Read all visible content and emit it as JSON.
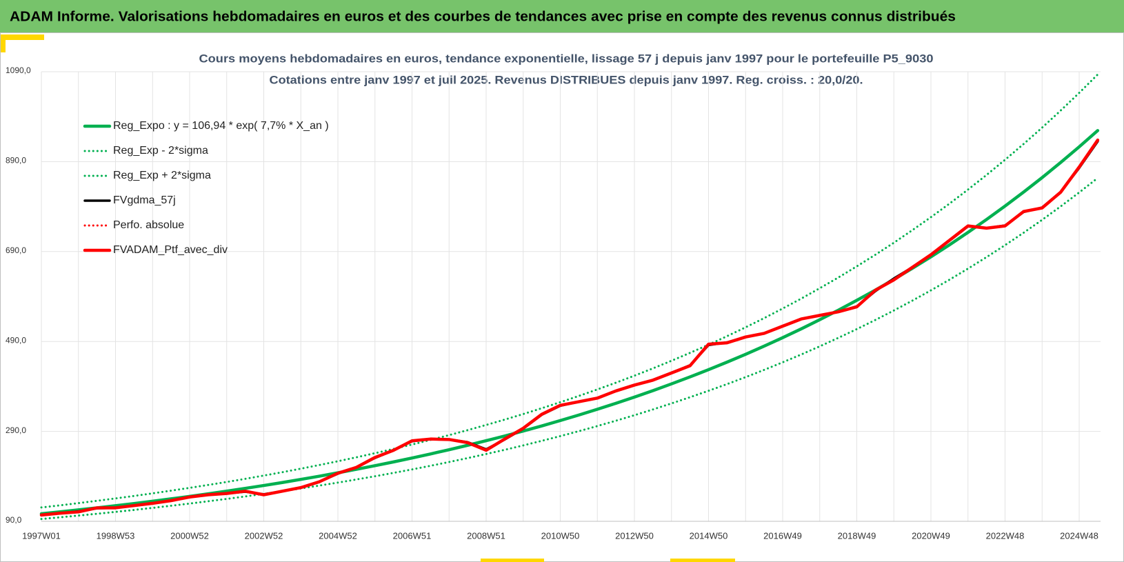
{
  "header": {
    "title": "ADAM Informe. Valorisations hebdomadaires en euros et des courbes de tendances avec prise en compte des revenus connus distribués"
  },
  "chart_data": {
    "type": "line",
    "title": "Cours moyens hebdomadaires en euros, tendance exponentielle, lissage 57 j depuis janv 1997 pour le portefeuille P5_9030",
    "subtitle": "Cotations entre janv 1997 et juil 2025. Revenus DISTRIBUES depuis janv 1997. Reg. croiss. : 20,0/20.",
    "categories": [
      "1997W01",
      null,
      null,
      null,
      "1998W53",
      null,
      null,
      null,
      "2000W52",
      null,
      null,
      null,
      "2002W52",
      null,
      null,
      null,
      "2004W52",
      null,
      null,
      null,
      "2006W51",
      null,
      null,
      null,
      "2008W51",
      null,
      null,
      null,
      "2010W50",
      null,
      null,
      null,
      "2012W50",
      null,
      null,
      null,
      "2014W50",
      null,
      null,
      null,
      "2016W49",
      null,
      null,
      null,
      "2018W49",
      null,
      null,
      null,
      "2020W49",
      null,
      null,
      null,
      "2022W48",
      null,
      null,
      null,
      "2024W48",
      null
    ],
    "ylim": [
      90,
      1090
    ],
    "yticks": [
      {
        "value": 90,
        "label": "90,0"
      },
      {
        "value": 290,
        "label": "290,0"
      },
      {
        "value": 490,
        "label": "490,0"
      },
      {
        "value": 690,
        "label": "690,0"
      },
      {
        "value": 890,
        "label": "890,0"
      },
      {
        "value": 1090,
        "label": "1090,0"
      }
    ],
    "grid": true,
    "legend": "top-left",
    "series": [
      {
        "name": "Reg_Expo : y = 106,94 * exp( 7,7% * X_an )",
        "color": "#00b050",
        "line_style": "solid",
        "values": [
          106.9,
          111.1,
          115.5,
          120.0,
          124.7,
          129.6,
          134.7,
          140.0,
          145.5,
          151.2,
          157.1,
          163.3,
          169.7,
          176.3,
          183.3,
          190.4,
          197.9,
          205.7,
          213.7,
          222.1,
          230.8,
          239.9,
          249.3,
          259.1,
          269.3,
          279.8,
          290.8,
          302.2,
          314.1,
          326.4,
          339.2,
          352.5,
          366.3,
          380.7,
          395.7,
          411.2,
          427.3,
          444.1,
          461.5,
          479.6,
          498.5,
          518.0,
          538.4,
          559.5,
          581.5,
          604.3,
          628.0,
          652.7,
          678.3,
          704.9,
          732.6,
          761.3,
          791.2,
          822.3,
          854.5,
          888.1,
          922.9,
          959.1
        ]
      },
      {
        "name": "Reg_Exp - 2*sigma",
        "color": "#00b050",
        "line_style": "dotted",
        "values": [
          95.1,
          98.9,
          102.8,
          106.8,
          111.0,
          115.3,
          119.9,
          124.6,
          129.5,
          134.6,
          139.8,
          145.3,
          151.0,
          156.9,
          163.1,
          169.5,
          176.1,
          183.1,
          190.2,
          197.7,
          205.4,
          213.5,
          221.9,
          230.6,
          239.7,
          249.0,
          258.8,
          269.0,
          279.5,
          290.5,
          301.9,
          313.7,
          326.0,
          338.8,
          352.2,
          366.0,
          380.3,
          395.2,
          410.7,
          426.8,
          443.7,
          461.0,
          479.2,
          498.0,
          517.5,
          537.8,
          558.9,
          580.9,
          603.7,
          627.4,
          652.0,
          677.6,
          704.2,
          731.8,
          760.5,
          790.4,
          821.4,
          853.6
        ]
      },
      {
        "name": "Reg_Exp + 2*sigma",
        "color": "#00b050",
        "line_style": "dotted",
        "values": [
          120.8,
          125.5,
          130.5,
          135.6,
          140.9,
          146.4,
          152.2,
          158.2,
          164.4,
          170.9,
          177.5,
          184.5,
          191.8,
          199.2,
          207.1,
          215.2,
          223.6,
          232.4,
          241.5,
          251.0,
          260.8,
          271.1,
          281.7,
          292.8,
          304.3,
          316.2,
          328.6,
          341.5,
          354.9,
          368.8,
          383.3,
          398.3,
          413.9,
          430.2,
          447.1,
          464.7,
          482.8,
          501.8,
          521.5,
          541.9,
          563.3,
          585.3,
          608.4,
          632.2,
          657.1,
          682.9,
          709.6,
          737.6,
          766.5,
          796.5,
          827.8,
          860.3,
          894.1,
          929.2,
          965.6,
          1003.6,
          1042.9,
          1083.8
        ]
      },
      {
        "name": "FVgdma_57j",
        "color": "#000000",
        "line_style": "solid",
        "values": [
          104,
          108,
          112,
          119,
          120,
          125,
          130,
          136,
          144,
          149,
          152,
          156,
          150,
          157,
          165,
          178,
          196,
          210,
          231,
          248,
          268,
          273,
          272,
          266,
          250,
          272,
          296,
          327,
          347,
          356,
          364,
          380,
          393,
          404,
          420,
          437,
          482,
          488,
          500,
          508,
          524,
          540,
          548,
          556,
          568,
          602,
          630,
          655,
          682,
          714,
          746,
          742,
          748,
          778,
          788,
          822,
          876,
          935
        ]
      },
      {
        "name": "Perfo. absolue",
        "color": "#ff0000",
        "line_style": "dotted",
        "values": [
          104,
          108,
          111,
          120,
          120,
          125,
          130,
          136,
          144,
          149,
          152,
          157,
          149,
          157,
          165,
          178,
          197,
          210,
          232,
          248,
          269,
          273,
          272,
          265,
          248,
          273,
          297,
          328,
          348,
          356,
          364,
          380,
          393,
          404,
          420,
          436,
          484,
          487,
          500,
          508,
          524,
          540,
          548,
          556,
          567,
          604,
          627,
          655,
          683,
          715,
          747,
          742,
          747,
          779,
          787,
          822,
          878,
          938
        ]
      },
      {
        "name": "FVADAM_Ptf_avec_div",
        "color": "#ff0000",
        "line_style": "solid",
        "values": [
          104,
          108,
          111,
          120,
          120,
          125,
          130,
          136,
          144,
          149,
          152,
          157,
          149,
          157,
          165,
          178,
          197,
          210,
          232,
          248,
          269,
          273,
          272,
          265,
          248,
          273,
          297,
          328,
          348,
          356,
          364,
          380,
          393,
          404,
          420,
          436,
          484,
          487,
          500,
          508,
          524,
          540,
          548,
          556,
          567,
          604,
          627,
          655,
          683,
          715,
          747,
          742,
          747,
          779,
          787,
          822,
          878,
          938
        ]
      }
    ]
  }
}
